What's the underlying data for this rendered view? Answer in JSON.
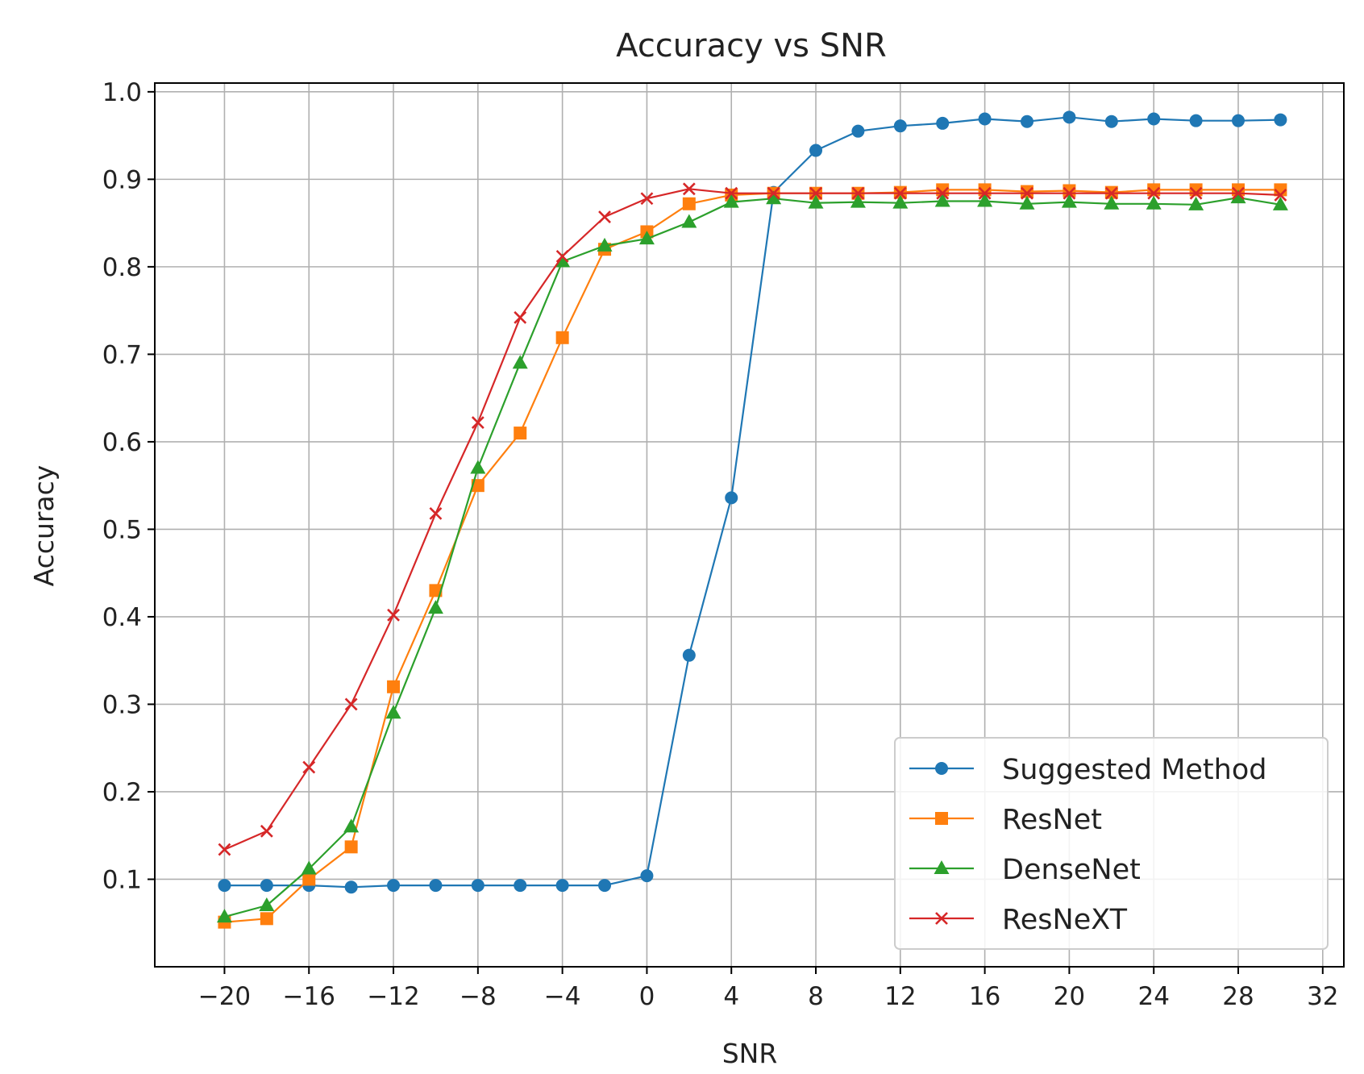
{
  "chart_data": {
    "type": "line",
    "title": "Accuracy vs SNR",
    "xlabel": "SNR",
    "ylabel": "Accuracy",
    "xlim": [
      -23.3,
      33
    ],
    "ylim": [
      0.0,
      1.01
    ],
    "xticks": [
      -20,
      -16,
      -12,
      -8,
      -4,
      0,
      4,
      8,
      12,
      16,
      20,
      24,
      28,
      32
    ],
    "yticks": [
      0.1,
      0.2,
      0.3,
      0.4,
      0.5,
      0.6,
      0.7,
      0.8,
      0.9,
      1.0
    ],
    "grid": true,
    "legend_position": "lower-right",
    "x": [
      -20,
      -18,
      -16,
      -14,
      -12,
      -10,
      -8,
      -6,
      -4,
      -2,
      0,
      2,
      4,
      6,
      8,
      10,
      12,
      14,
      16,
      18,
      20,
      22,
      24,
      26,
      28,
      30
    ],
    "series": [
      {
        "name": "Suggested Method",
        "color": "#1f77b4",
        "marker": "circle",
        "values": [
          0.093,
          0.093,
          0.093,
          0.091,
          0.093,
          0.093,
          0.093,
          0.093,
          0.093,
          0.093,
          0.104,
          0.356,
          0.536,
          0.885,
          0.933,
          0.955,
          0.961,
          0.964,
          0.969,
          0.966,
          0.971,
          0.966,
          0.969,
          0.967,
          0.967,
          0.968
        ]
      },
      {
        "name": "ResNet",
        "color": "#ff7f0e",
        "marker": "square",
        "values": [
          0.051,
          0.055,
          0.1,
          0.137,
          0.32,
          0.43,
          0.55,
          0.61,
          0.719,
          0.82,
          0.84,
          0.872,
          0.882,
          0.884,
          0.884,
          0.884,
          0.885,
          0.888,
          0.888,
          0.886,
          0.887,
          0.885,
          0.888,
          0.888,
          0.888,
          0.888
        ]
      },
      {
        "name": "DenseNet",
        "color": "#2ca02c",
        "marker": "triangle",
        "values": [
          0.057,
          0.07,
          0.112,
          0.16,
          0.29,
          0.41,
          0.57,
          0.69,
          0.806,
          0.824,
          0.832,
          0.851,
          0.874,
          0.878,
          0.873,
          0.874,
          0.873,
          0.875,
          0.875,
          0.872,
          0.874,
          0.872,
          0.872,
          0.871,
          0.879,
          0.871
        ]
      },
      {
        "name": "ResNeXT",
        "color": "#d62728",
        "marker": "x",
        "values": [
          0.134,
          0.155,
          0.228,
          0.3,
          0.402,
          0.518,
          0.622,
          0.742,
          0.812,
          0.857,
          0.878,
          0.889,
          0.884,
          0.884,
          0.884,
          0.884,
          0.884,
          0.884,
          0.884,
          0.884,
          0.884,
          0.884,
          0.884,
          0.884,
          0.884,
          0.882
        ]
      }
    ]
  }
}
